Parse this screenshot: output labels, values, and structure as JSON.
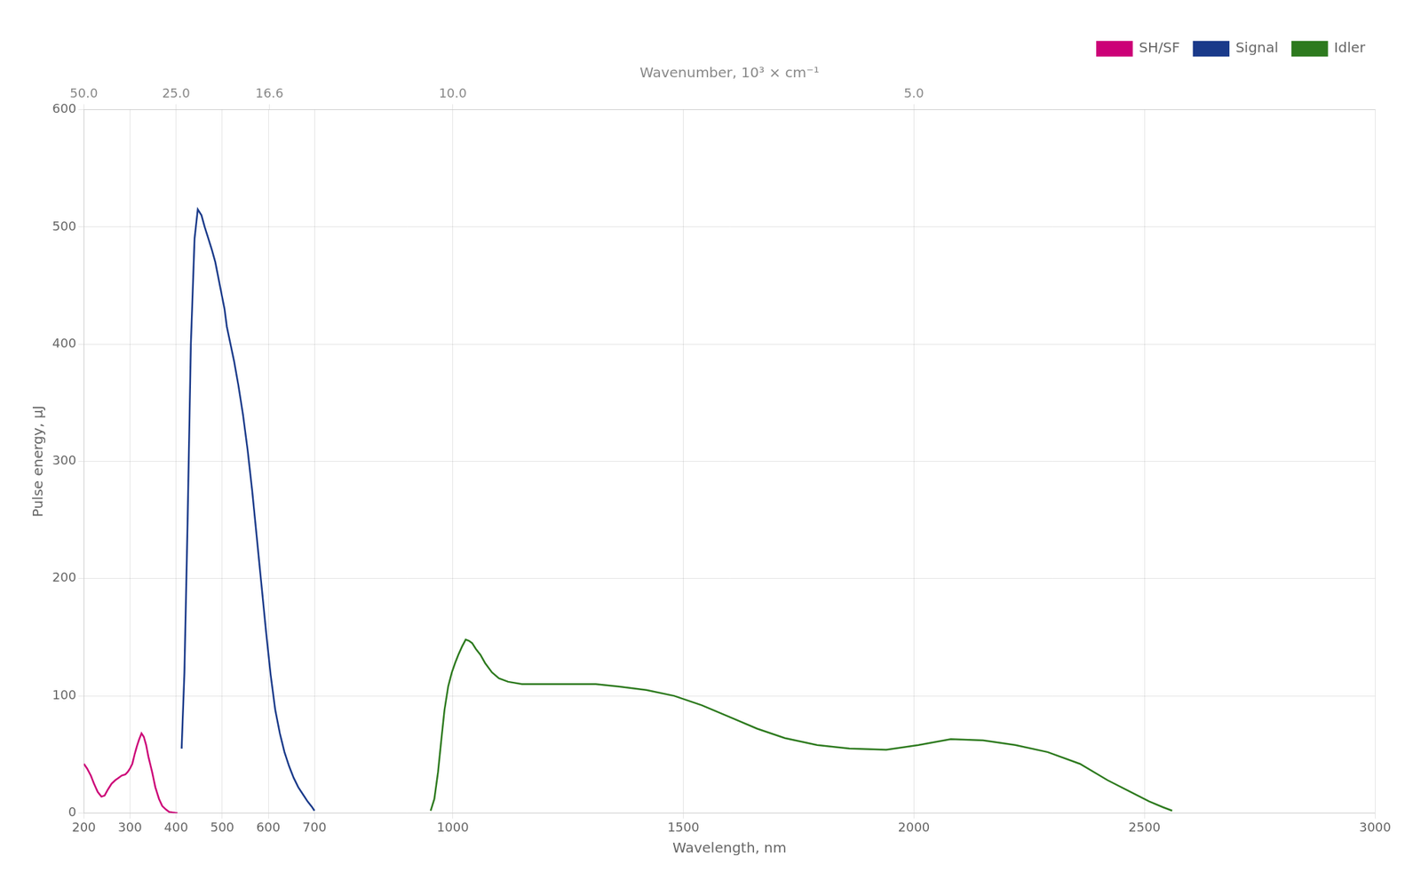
{
  "chart_data": {
    "type": "line",
    "xlabel": "Wavelength, nm",
    "ylabel": "Pulse energy, μJ",
    "x2label": "Wavenumber, 10³ × cm⁻¹",
    "xlim": [
      200,
      3000
    ],
    "xticks": [
      200,
      300,
      400,
      500,
      600,
      700,
      1000,
      1500,
      2000,
      2500,
      3000
    ],
    "x2lim": [
      50,
      3.3333333333333335
    ],
    "x2ticks": [
      {
        "value": 50.0,
        "label": "50.0"
      },
      {
        "value": 25.0,
        "label": "25.0"
      },
      16.6,
      {
        "value": 10.0,
        "label": "10.0"
      },
      {
        "value": 5.0,
        "label": "5.0"
      }
    ],
    "ylim": [
      0,
      600
    ],
    "yticks": [
      0,
      100,
      200,
      300,
      400,
      500,
      600
    ],
    "grid": true,
    "legend": "upper right",
    "series": [
      {
        "name": "SH/SF",
        "color": "#cc0077",
        "x": [
          200,
          207,
          215,
          222,
          230,
          238,
          245,
          252,
          260,
          268,
          275,
          282,
          290,
          295,
          300,
          305,
          310,
          315,
          320,
          325,
          330,
          335,
          340,
          348,
          355,
          363,
          370,
          378,
          385,
          392,
          398,
          403
        ],
        "values": [
          42,
          38,
          32,
          25,
          18,
          14,
          15,
          20,
          25,
          28,
          30,
          32,
          33,
          35,
          38,
          42,
          50,
          57,
          63,
          68,
          65,
          58,
          48,
          35,
          22,
          12,
          6,
          3,
          1,
          0.5,
          0.2,
          0
        ]
      },
      {
        "name": "Signal",
        "color": "#1a3a8a",
        "x": [
          412,
          418,
          425,
          432,
          440,
          447,
          455,
          462,
          470,
          478,
          485,
          490,
          495,
          500,
          505,
          510,
          518,
          526,
          535,
          545,
          555,
          565,
          575,
          585,
          595,
          605,
          615,
          625,
          635,
          645,
          655,
          665,
          675,
          685,
          695,
          700
        ],
        "values": [
          55,
          120,
          250,
          400,
          490,
          515,
          510,
          500,
          490,
          480,
          470,
          460,
          450,
          440,
          430,
          415,
          400,
          385,
          365,
          340,
          310,
          275,
          235,
          195,
          155,
          118,
          88,
          68,
          52,
          40,
          30,
          22,
          16,
          10,
          5,
          2
        ]
      },
      {
        "name": "Idler",
        "color": "#2d7a1e",
        "x": [
          952,
          960,
          968,
          975,
          982,
          990,
          998,
          1005,
          1012,
          1020,
          1028,
          1035,
          1042,
          1050,
          1060,
          1070,
          1085,
          1100,
          1120,
          1150,
          1180,
          1220,
          1260,
          1310,
          1360,
          1420,
          1480,
          1540,
          1600,
          1660,
          1720,
          1790,
          1860,
          1940,
          2010,
          2080,
          2150,
          2220,
          2290,
          2360,
          2420,
          2470,
          2510,
          2540,
          2560
        ],
        "values": [
          2,
          12,
          35,
          62,
          88,
          108,
          120,
          128,
          135,
          142,
          148,
          147,
          145,
          140,
          135,
          128,
          120,
          115,
          112,
          110,
          110,
          110,
          110,
          110,
          108,
          105,
          100,
          92,
          82,
          72,
          64,
          58,
          55,
          54,
          58,
          63,
          62,
          58,
          52,
          42,
          28,
          18,
          10,
          5,
          2
        ]
      }
    ]
  }
}
